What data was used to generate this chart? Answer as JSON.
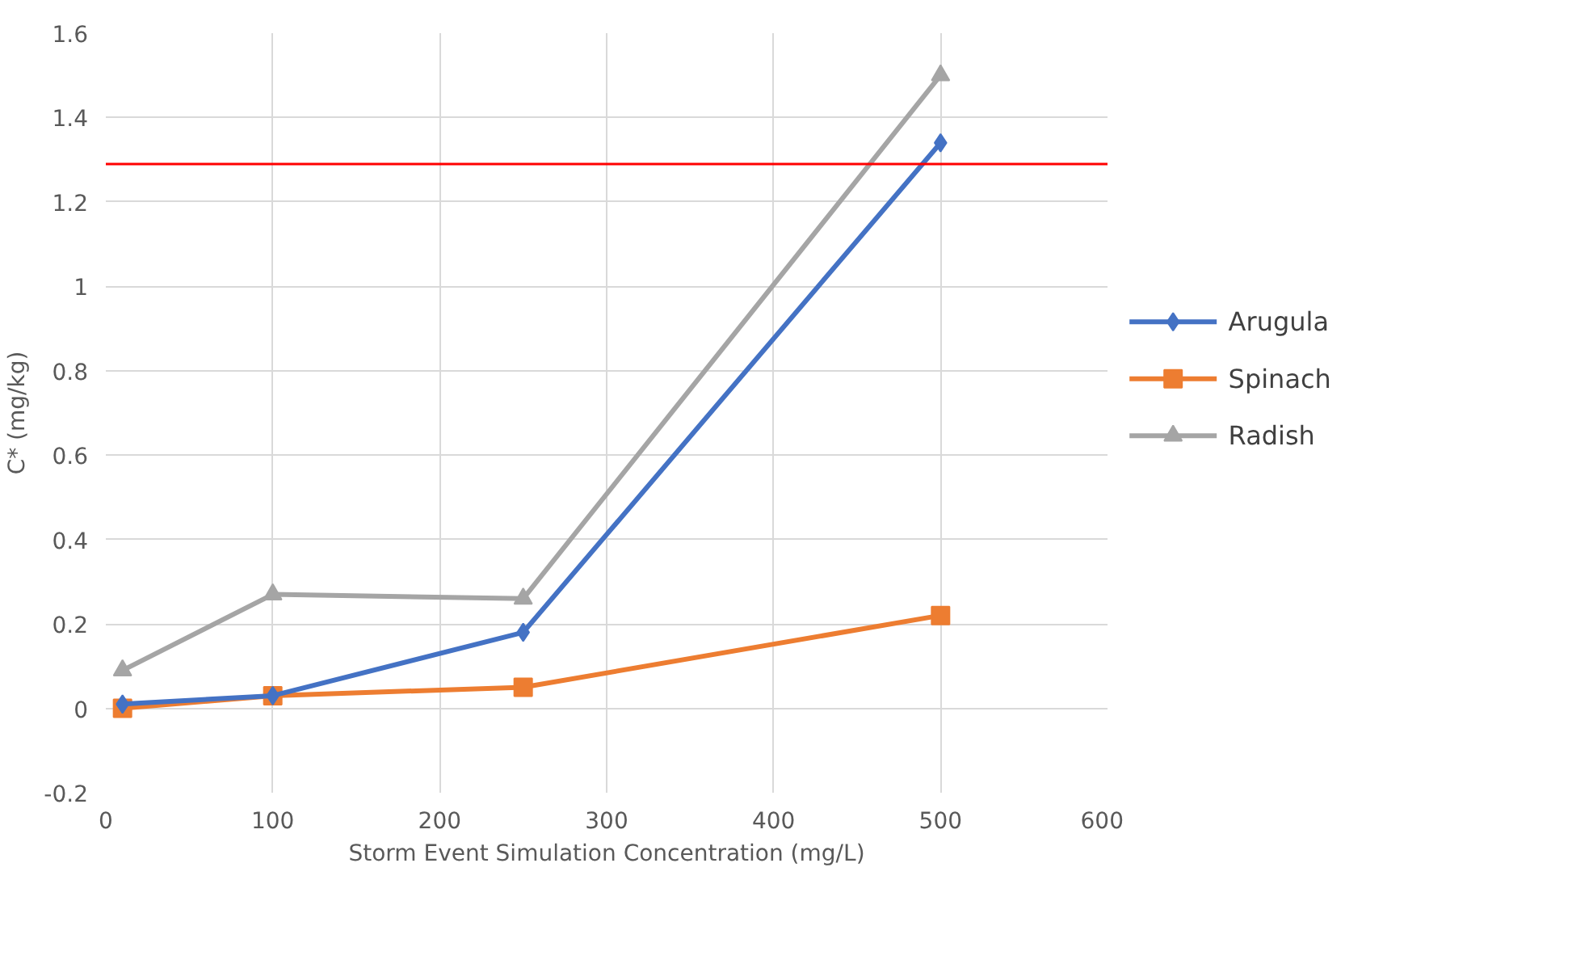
{
  "chart_data": {
    "type": "line",
    "xlabel": "Storm Event Simulation Concentration (mg/L)",
    "ylabel": "C* (mg/kg)",
    "x": [
      10,
      100,
      250,
      500
    ],
    "series": [
      {
        "name": "Arugula",
        "color": "#4472c4",
        "marker": "diamond",
        "values": [
          0.01,
          0.03,
          0.18,
          1.34
        ]
      },
      {
        "name": "Spinach",
        "color": "#ed7d31",
        "marker": "square",
        "values": [
          0.0,
          0.03,
          0.05,
          0.22
        ]
      },
      {
        "name": "Radish",
        "color": "#a5a5a5",
        "marker": "triangle",
        "values": [
          0.09,
          0.27,
          0.26,
          1.5
        ]
      }
    ],
    "xlim": [
      0,
      600
    ],
    "xticks": [
      0,
      100,
      200,
      300,
      400,
      500,
      600
    ],
    "ylim": [
      -0.2,
      1.6
    ],
    "yticks": [
      -0.2,
      0,
      0.2,
      0.4,
      0.6,
      0.8,
      1,
      1.2,
      1.4,
      1.6
    ],
    "ref_lines": [
      {
        "axis": "y",
        "value": 1.29,
        "color": "#ff0000"
      }
    ],
    "grid": true,
    "legend": "right",
    "line_style": "solid"
  }
}
